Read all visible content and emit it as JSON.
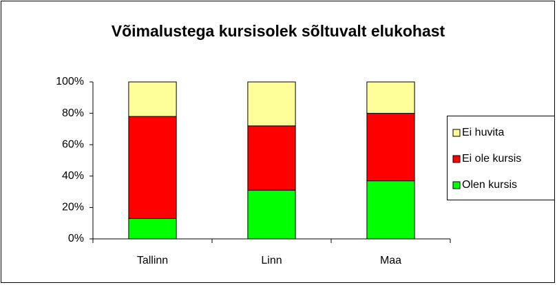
{
  "chart_data": {
    "type": "stacked_bar",
    "title": "Võimalustega kursisolek sõltuvalt elukohast",
    "categories": [
      "Tallinn",
      "Linn",
      "Maa"
    ],
    "series": [
      {
        "name": "Olen kursis",
        "color": "#00ff00",
        "values": [
          13,
          31,
          37
        ]
      },
      {
        "name": "Ei ole kursis",
        "color": "#ff0000",
        "values": [
          65,
          41,
          43
        ]
      },
      {
        "name": "Ei huvita",
        "color": "#ffff99",
        "values": [
          22,
          28,
          20
        ]
      }
    ],
    "ylim": [
      0,
      100
    ],
    "yticks": [
      {
        "value": 0,
        "label": "0%"
      },
      {
        "value": 20,
        "label": "20%"
      },
      {
        "value": 40,
        "label": "40%"
      },
      {
        "value": 60,
        "label": "60%"
      },
      {
        "value": 80,
        "label": "80%"
      },
      {
        "value": 100,
        "label": "100%"
      }
    ],
    "grid": false,
    "legend": "right"
  }
}
